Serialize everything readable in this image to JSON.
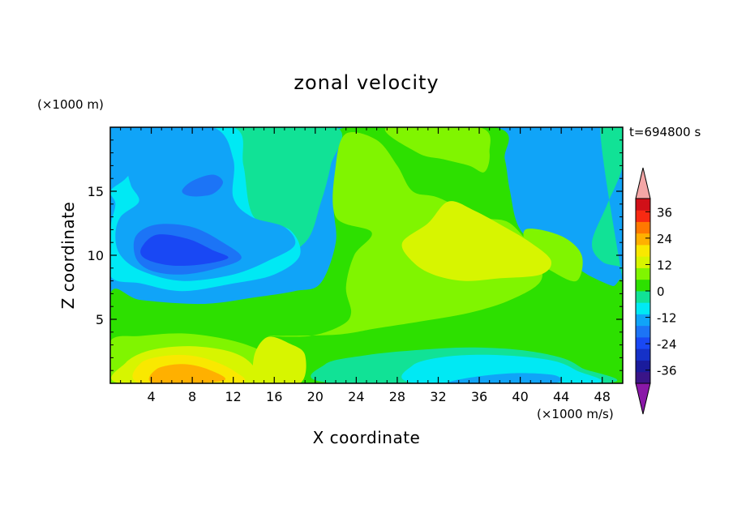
{
  "chart_data": {
    "type": "heatmap",
    "title": "zonal velocity",
    "xlabel": "X coordinate",
    "ylabel": "Z coordinate",
    "x_units": "(×1000 m/s)",
    "y_units": "(×1000 m)",
    "annotation": "t=694800 s",
    "xlim": [
      0,
      50
    ],
    "ylim": [
      0,
      20
    ],
    "xticks": [
      4,
      8,
      12,
      16,
      20,
      24,
      28,
      32,
      36,
      40,
      44,
      48
    ],
    "yticks": [
      5,
      10,
      15
    ],
    "colorbar": {
      "levels": [
        -42,
        -36,
        -30,
        -24,
        -18,
        -12,
        -6,
        0,
        6,
        12,
        18,
        24,
        30,
        36,
        42
      ],
      "colors": [
        "#3a1488",
        "#1a1b9c",
        "#1531c8",
        "#1948f4",
        "#1c74f6",
        "#10a4f8",
        "#00e9f4",
        "#11e296",
        "#2de000",
        "#80f500",
        "#d7f500",
        "#f9e800",
        "#ffb000",
        "#ff7800",
        "#f82a12",
        "#d11018"
      ],
      "under_color": "#8a18a8",
      "over_color": "#f4a6a6",
      "tick_labels": [
        "36",
        "24",
        "12",
        "0",
        "-12",
        "-24",
        "-36"
      ],
      "tick_values": [
        36,
        24,
        12,
        0,
        -12,
        -24,
        -36
      ]
    },
    "background_color": "#10a4f8",
    "regions": [
      {
        "value": 0,
        "points": [
          [
            0,
            7
          ],
          [
            3,
            6.5
          ],
          [
            9,
            6.2
          ],
          [
            14,
            6.7
          ],
          [
            18,
            7.2
          ],
          [
            20.5,
            7.8
          ],
          [
            22,
            11
          ],
          [
            21.8,
            14
          ],
          [
            22.5,
            17.5
          ],
          [
            23,
            20
          ],
          [
            37.5,
            20
          ],
          [
            38.5,
            17.5
          ],
          [
            39,
            15
          ],
          [
            40,
            12
          ],
          [
            43,
            10
          ],
          [
            45.5,
            9
          ],
          [
            47,
            8.3
          ],
          [
            49,
            7.6
          ],
          [
            50,
            7.6
          ],
          [
            50,
            0
          ],
          [
            0,
            0
          ]
        ]
      },
      {
        "value": -6,
        "points": [
          [
            47.8,
            20
          ],
          [
            50,
            20
          ],
          [
            50,
            17
          ],
          [
            48.5,
            14
          ],
          [
            47,
            11
          ],
          [
            48,
            9.5
          ],
          [
            50,
            9
          ],
          [
            50,
            8
          ]
        ]
      },
      {
        "value": -6,
        "points": [
          [
            12,
            20
          ],
          [
            22,
            20
          ],
          [
            21.5,
            17
          ],
          [
            20.5,
            14
          ],
          [
            19,
            11
          ],
          [
            15,
            9.5
          ],
          [
            12,
            12
          ],
          [
            12.5,
            16
          ]
        ]
      },
      {
        "value": 6,
        "points": [
          [
            15.5,
            3.7
          ],
          [
            19.5,
            3.7
          ],
          [
            22.5,
            4.5
          ],
          [
            23.5,
            5.5
          ],
          [
            23,
            7.5
          ],
          [
            23.8,
            10
          ],
          [
            25.5,
            11.8
          ],
          [
            22,
            13
          ],
          [
            22,
            17
          ],
          [
            23,
            19.5
          ],
          [
            26,
            19
          ],
          [
            28,
            17
          ],
          [
            29.5,
            15
          ],
          [
            32,
            14.5
          ],
          [
            36,
            13
          ],
          [
            39,
            12.5
          ],
          [
            41.5,
            10
          ],
          [
            42,
            8
          ],
          [
            39,
            6.5
          ],
          [
            35,
            5.5
          ],
          [
            30,
            4.8
          ],
          [
            26,
            4.3
          ],
          [
            22,
            3.8
          ]
        ]
      },
      {
        "value": 6,
        "points": [
          [
            27,
            20
          ],
          [
            36,
            20
          ],
          [
            37,
            18
          ],
          [
            36.5,
            16.5
          ],
          [
            35,
            17
          ],
          [
            32.5,
            17.5
          ],
          [
            30,
            18
          ]
        ]
      },
      {
        "value": 6,
        "points": [
          [
            40.5,
            12
          ],
          [
            44,
            11.5
          ],
          [
            46,
            10
          ],
          [
            45.5,
            8
          ],
          [
            43,
            8.8
          ],
          [
            41,
            10
          ]
        ]
      },
      {
        "value": 6,
        "points": [
          [
            0,
            0
          ],
          [
            17,
            0
          ],
          [
            16,
            1.8
          ],
          [
            14,
            2.8
          ],
          [
            11,
            3.5
          ],
          [
            7,
            3.9
          ],
          [
            3,
            3.7
          ],
          [
            0,
            3.3
          ]
        ]
      },
      {
        "value": 12,
        "points": [
          [
            28.5,
            11
          ],
          [
            31,
            12.5
          ],
          [
            33,
            14.2
          ],
          [
            35.5,
            13.5
          ],
          [
            38.5,
            12.2
          ],
          [
            41,
            11
          ],
          [
            43,
            9.6
          ],
          [
            42,
            8.5
          ],
          [
            38,
            8.2
          ],
          [
            34.5,
            8
          ],
          [
            31.5,
            8.5
          ],
          [
            29.5,
            9.5
          ]
        ]
      },
      {
        "value": 12,
        "points": [
          [
            15.3,
            3.6
          ],
          [
            17.5,
            3.1
          ],
          [
            19,
            2.2
          ],
          [
            18.5,
            0
          ],
          [
            14.5,
            0
          ],
          [
            14,
            2
          ]
        ]
      },
      {
        "value": 12,
        "points": [
          [
            1.5,
            1.6
          ],
          [
            4,
            2.6
          ],
          [
            8,
            2.9
          ],
          [
            12,
            2.4
          ],
          [
            14,
            1.3
          ],
          [
            14,
            0
          ],
          [
            1,
            0
          ]
        ]
      },
      {
        "value": 18,
        "points": [
          [
            3,
            1.6
          ],
          [
            6,
            2.2
          ],
          [
            9,
            2
          ],
          [
            12,
            1
          ],
          [
            12.5,
            0
          ],
          [
            3,
            0
          ]
        ]
      },
      {
        "value": 24,
        "points": [
          [
            4.5,
            1.1
          ],
          [
            7,
            1.5
          ],
          [
            9.5,
            1.1
          ],
          [
            11,
            0.2
          ],
          [
            4.3,
            0
          ]
        ]
      },
      {
        "value": -6,
        "points": [
          [
            21,
            1.5
          ],
          [
            25,
            2.2
          ],
          [
            30,
            2.6
          ],
          [
            35,
            2.8
          ],
          [
            40,
            2.6
          ],
          [
            44,
            2
          ],
          [
            46,
            1.2
          ],
          [
            48,
            0
          ],
          [
            22,
            0
          ]
        ]
      },
      {
        "value": -12,
        "points": [
          [
            29.5,
            1.4
          ],
          [
            33,
            2.1
          ],
          [
            38,
            2.2
          ],
          [
            43,
            1.8
          ],
          [
            45.5,
            1
          ],
          [
            47,
            0
          ],
          [
            30,
            0
          ]
        ]
      },
      {
        "value": -18,
        "points": [
          [
            33.5,
            0.2
          ],
          [
            36.5,
            0.6
          ],
          [
            40,
            0.8
          ],
          [
            43.5,
            0.6
          ],
          [
            43,
            0
          ],
          [
            34,
            0
          ]
        ]
      },
      {
        "value": -12,
        "points": [
          [
            0,
            15
          ],
          [
            0.5,
            14
          ],
          [
            0,
            12
          ],
          [
            0,
            8.4
          ],
          [
            3,
            7.8
          ],
          [
            7,
            7.2
          ],
          [
            12,
            7.8
          ],
          [
            16,
            8.5
          ],
          [
            18.5,
            10
          ],
          [
            17.5,
            12
          ],
          [
            14,
            13
          ],
          [
            13,
            17
          ],
          [
            12,
            20
          ],
          [
            3.5,
            20
          ],
          [
            3,
            17.5
          ],
          [
            1.5,
            16
          ]
        ]
      },
      {
        "value": -18,
        "points": [
          [
            1.8,
            17
          ],
          [
            3,
            20
          ],
          [
            10,
            20
          ],
          [
            12,
            17.5
          ],
          [
            12,
            14.5
          ],
          [
            13.8,
            13
          ],
          [
            17,
            12.2
          ],
          [
            18,
            10.8
          ],
          [
            15.5,
            9.6
          ],
          [
            12,
            8.5
          ],
          [
            7,
            8
          ],
          [
            3,
            8.8
          ],
          [
            1,
            10
          ],
          [
            0.5,
            11.5
          ],
          [
            1,
            13
          ],
          [
            2.8,
            14.2
          ],
          [
            2,
            15.5
          ]
        ]
      },
      {
        "value": -24,
        "points": [
          [
            2.5,
            11.5
          ],
          [
            4.5,
            12.4
          ],
          [
            8,
            12.2
          ],
          [
            11,
            11
          ],
          [
            12.8,
            9.8
          ],
          [
            10.5,
            9
          ],
          [
            7,
            8.5
          ],
          [
            4,
            8.8
          ],
          [
            2.5,
            9.8
          ]
        ]
      },
      {
        "value": -24,
        "points": [
          [
            7,
            15
          ],
          [
            8,
            15.8
          ],
          [
            10,
            16.3
          ],
          [
            11,
            15.7
          ],
          [
            10,
            14.8
          ],
          [
            8,
            14.6
          ]
        ]
      },
      {
        "value": -30,
        "points": [
          [
            3,
            10.5
          ],
          [
            4.5,
            11.6
          ],
          [
            7.5,
            11.3
          ],
          [
            10,
            10.4
          ],
          [
            11.5,
            9.8
          ],
          [
            9,
            9.3
          ],
          [
            6,
            9.2
          ],
          [
            3.5,
            9.7
          ]
        ]
      }
    ]
  }
}
